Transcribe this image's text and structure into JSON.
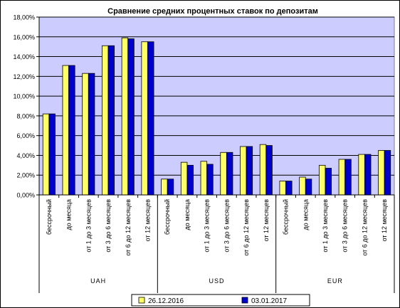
{
  "chart_data": {
    "type": "bar",
    "title": "Сравнение средних процентных ставок по депозитам",
    "xlabel": "",
    "ylabel": "",
    "ylim": [
      0,
      18
    ],
    "y_ticks": [
      "0,00%",
      "2,00%",
      "4,00%",
      "6,00%",
      "8,00%",
      "10,00%",
      "12,00%",
      "14,00%",
      "16,00%",
      "18,00%"
    ],
    "y_tick_values": [
      0,
      2,
      4,
      6,
      8,
      10,
      12,
      14,
      16,
      18
    ],
    "grid": true,
    "legend_position": "bottom",
    "groups": [
      {
        "label": "UAH",
        "categories": [
          "бессрочный",
          "до месяца",
          "от 1 до 3 месяцев",
          "от 3 до 6 месяцев",
          "от 6 до 12 месяцев",
          "от 12 месяцев"
        ]
      },
      {
        "label": "USD",
        "categories": [
          "бессрочный",
          "до месяца",
          "от 1 до 3 месяцев",
          "от 3 до 6 месяцев",
          "от 6 до 12 месяцев",
          "от 12 месяцев"
        ]
      },
      {
        "label": "EUR",
        "categories": [
          "бессрочный",
          "до месяца",
          "от 1 до 3 месяцев",
          "от 3 до 6 месяцев",
          "от 6 до 12 месяцев",
          "от 12 месяцев"
        ]
      }
    ],
    "series": [
      {
        "name": "26.12.2016",
        "color": "#ffff66",
        "values": [
          8.2,
          13.1,
          12.3,
          15.1,
          15.9,
          15.5,
          1.6,
          3.3,
          3.4,
          4.3,
          4.9,
          5.1,
          1.4,
          1.8,
          3.0,
          3.6,
          4.1,
          4.5
        ]
      },
      {
        "name": "03.01.2017",
        "color": "#0000cc",
        "values": [
          8.2,
          13.1,
          12.3,
          15.1,
          15.8,
          15.5,
          1.6,
          3.0,
          3.1,
          4.3,
          4.9,
          5.0,
          1.4,
          1.6,
          2.7,
          3.6,
          4.1,
          4.5
        ]
      }
    ]
  }
}
